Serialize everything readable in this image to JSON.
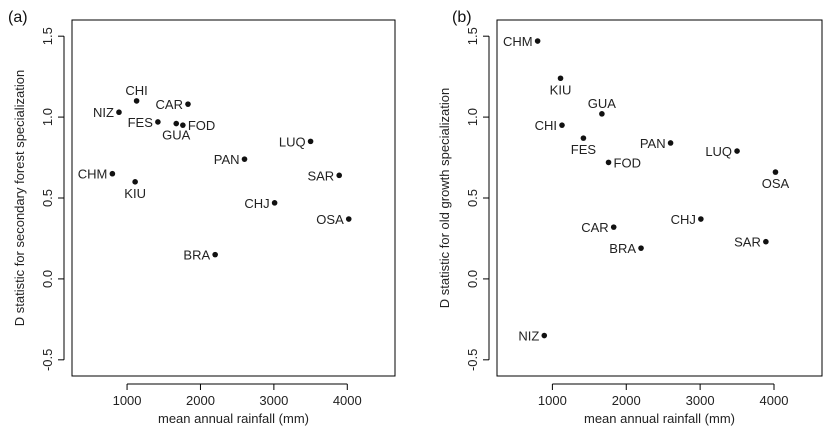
{
  "chart_data": [
    {
      "type": "scatter",
      "panel_label": "(a)",
      "xlabel": "mean annual rainfall (mm)",
      "ylabel": "D statistic for secondary forest specialization",
      "xlim": [
        250,
        4650
      ],
      "ylim": [
        -0.6,
        1.6
      ],
      "xticks": [
        1000,
        2000,
        3000,
        4000
      ],
      "yticks": [
        -0.5,
        0.0,
        0.5,
        1.0,
        1.5
      ],
      "ytick_labels": [
        "-0.5",
        "0.0",
        "0.5",
        "1.0",
        "1.5"
      ],
      "grid": false,
      "points": [
        {
          "label": "CHI",
          "x": 1130,
          "y": 1.1,
          "label_pos": "top"
        },
        {
          "label": "NIZ",
          "x": 890,
          "y": 1.03,
          "label_pos": "left"
        },
        {
          "label": "CAR",
          "x": 1830,
          "y": 1.08,
          "label_pos": "left"
        },
        {
          "label": "FES",
          "x": 1420,
          "y": 0.97,
          "label_pos": "left"
        },
        {
          "label": "GUA",
          "x": 1670,
          "y": 0.96,
          "label_pos": "bottom"
        },
        {
          "label": "FOD",
          "x": 1760,
          "y": 0.95,
          "label_pos": "right"
        },
        {
          "label": "LUQ",
          "x": 3500,
          "y": 0.85,
          "label_pos": "left"
        },
        {
          "label": "PAN",
          "x": 2600,
          "y": 0.74,
          "label_pos": "left"
        },
        {
          "label": "CHM",
          "x": 800,
          "y": 0.65,
          "label_pos": "left"
        },
        {
          "label": "KIU",
          "x": 1110,
          "y": 0.6,
          "label_pos": "bottom"
        },
        {
          "label": "SAR",
          "x": 3890,
          "y": 0.64,
          "label_pos": "left"
        },
        {
          "label": "CHJ",
          "x": 3010,
          "y": 0.47,
          "label_pos": "left"
        },
        {
          "label": "OSA",
          "x": 4020,
          "y": 0.37,
          "label_pos": "left"
        },
        {
          "label": "BRA",
          "x": 2200,
          "y": 0.15,
          "label_pos": "left"
        }
      ]
    },
    {
      "type": "scatter",
      "panel_label": "(b)",
      "xlabel": "mean annual rainfall (mm)",
      "ylabel": "D statistic for old growth specialization",
      "xlim": [
        250,
        4650
      ],
      "ylim": [
        -0.6,
        1.6
      ],
      "xticks": [
        1000,
        2000,
        3000,
        4000
      ],
      "yticks": [
        -0.5,
        0.0,
        0.5,
        1.0,
        1.5
      ],
      "ytick_labels": [
        "-0.5",
        "0.0",
        "0.5",
        "1.0",
        "1.5"
      ],
      "grid": false,
      "points": [
        {
          "label": "CHM",
          "x": 800,
          "y": 1.47,
          "label_pos": "left"
        },
        {
          "label": "KIU",
          "x": 1110,
          "y": 1.24,
          "label_pos": "bottom"
        },
        {
          "label": "GUA",
          "x": 1670,
          "y": 1.02,
          "label_pos": "top"
        },
        {
          "label": "CHI",
          "x": 1130,
          "y": 0.95,
          "label_pos": "left"
        },
        {
          "label": "FES",
          "x": 1420,
          "y": 0.87,
          "label_pos": "bottom"
        },
        {
          "label": "PAN",
          "x": 2600,
          "y": 0.84,
          "label_pos": "left"
        },
        {
          "label": "LUQ",
          "x": 3500,
          "y": 0.79,
          "label_pos": "left"
        },
        {
          "label": "FOD",
          "x": 1760,
          "y": 0.72,
          "label_pos": "right"
        },
        {
          "label": "OSA",
          "x": 4020,
          "y": 0.66,
          "label_pos": "bottom"
        },
        {
          "label": "CHJ",
          "x": 3010,
          "y": 0.37,
          "label_pos": "left"
        },
        {
          "label": "CAR",
          "x": 1830,
          "y": 0.32,
          "label_pos": "left"
        },
        {
          "label": "SAR",
          "x": 3890,
          "y": 0.23,
          "label_pos": "left"
        },
        {
          "label": "BRA",
          "x": 2200,
          "y": 0.19,
          "label_pos": "left"
        },
        {
          "label": "NIZ",
          "x": 890,
          "y": -0.35,
          "label_pos": "left"
        }
      ]
    }
  ]
}
